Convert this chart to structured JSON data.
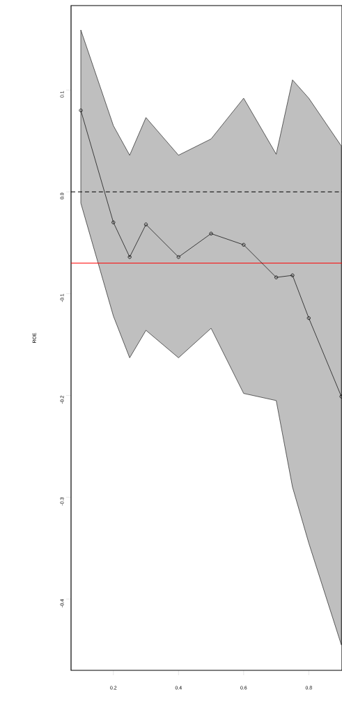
{
  "chart_data": {
    "type": "line",
    "ylabel": "ROE",
    "x": [
      0.1,
      0.2,
      0.25,
      0.3,
      0.4,
      0.5,
      0.6,
      0.7,
      0.75,
      0.8,
      0.9
    ],
    "series": [
      {
        "color": "#000000",
        "values": [
          0.08,
          -0.03,
          -0.064,
          -0.032,
          -0.064,
          -0.041,
          -0.052,
          -0.084,
          -0.082,
          -0.124,
          -0.201
        ],
        "upper": [
          0.159,
          0.065,
          0.036,
          0.073,
          0.036,
          0.052,
          0.092,
          0.037,
          0.11,
          0.092,
          0.045
        ],
        "lower": [
          -0.011,
          -0.122,
          -0.163,
          -0.136,
          -0.163,
          -0.134,
          -0.198,
          -0.205,
          -0.29,
          -0.345,
          -0.445
        ]
      }
    ],
    "xlim": [
      0.07,
      0.902
    ],
    "ylim": [
      -0.47,
      0.183
    ],
    "xticks": [
      0.2,
      0.4,
      0.6,
      0.8
    ],
    "yticks": [
      -0.4,
      -0.3,
      -0.2,
      -0.1,
      {
        "value": 0,
        "label": "0.0"
      },
      0.1
    ],
    "ref_lines": [
      {
        "axis": "y",
        "value": 0,
        "color": "#000000",
        "line_style": "dashed"
      },
      {
        "axis": "y",
        "value": -0.07,
        "color": "#ff0000",
        "line_style": "solid"
      }
    ],
    "marker": "circle",
    "line_style": "solid",
    "grid": false
  }
}
